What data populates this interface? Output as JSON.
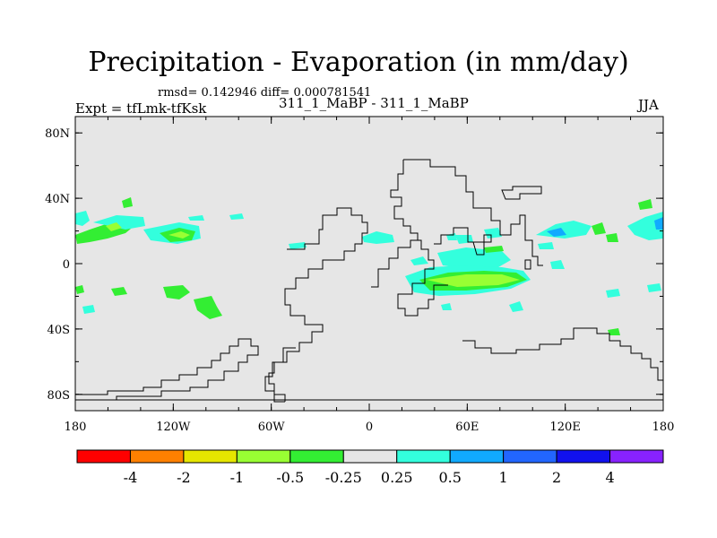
{
  "chart_data": {
    "type": "heatmap",
    "title": "Precipitation - Evaporation (in mm/day)",
    "stats_text": "rmsd= 0.142946 diff= 0.000781541",
    "left_label": "Expt = tfLmk-tfKsk",
    "center_label": "311_1_MaBP - 311_1_MaBP",
    "right_label": "JJA",
    "x_axis": {
      "range": [
        -180,
        180
      ],
      "tick_labels": [
        "180",
        "120W",
        "60W",
        "0",
        "60E",
        "120E",
        "180"
      ]
    },
    "y_axis": {
      "range": [
        -90,
        90
      ],
      "tick_labels": [
        "80N",
        "40N",
        "0",
        "40S",
        "80S"
      ]
    },
    "colorbar": {
      "colors": [
        "#ff0000",
        "#ff8000",
        "#e6e600",
        "#99ff33",
        "#33ee33",
        "#e6e6e6",
        "#33ffdd",
        "#11aaff",
        "#2266ff",
        "#1111ee",
        "#8822ff"
      ],
      "labels": [
        "-4",
        "-2",
        "-1",
        "-0.5",
        "-0.25",
        "0.25",
        "0.5",
        "1",
        "2",
        "4"
      ]
    },
    "background_color": "#e6e6e6"
  }
}
